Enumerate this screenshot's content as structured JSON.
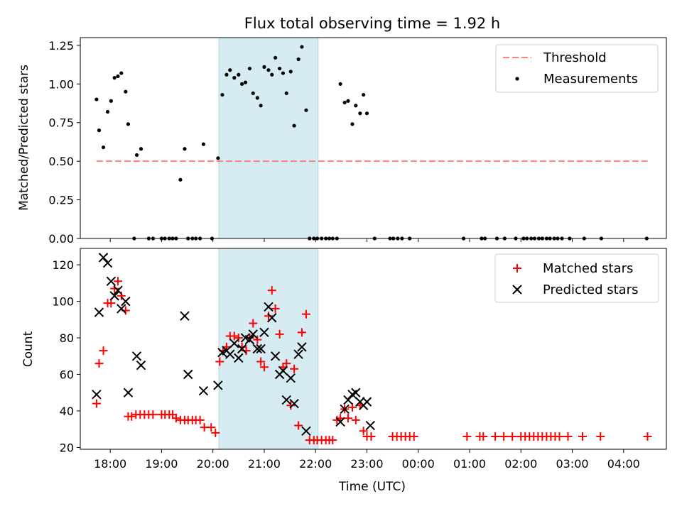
{
  "chart_data": [
    {
      "type": "scatter",
      "title": "Flux total observing time = 1.92 h",
      "xlabel": "",
      "ylabel": "Matched/Predicted stars",
      "ylim": [
        0,
        1.3
      ],
      "xlim": [
        "17:25",
        "04:50"
      ],
      "yticks": [
        0,
        0.25,
        0.5,
        0.75,
        1.0,
        1.25
      ],
      "ytick_labels": [
        "0.00",
        "0.25",
        "0.50",
        "0.75",
        "1.00",
        "1.25"
      ],
      "shaded_span": {
        "start": "20:07",
        "end": "22:03"
      },
      "legend_position": "upper right",
      "threshold": {
        "name": "Threshold",
        "value": 0.5,
        "x_start": "17:44",
        "x_end": "04:28",
        "color": "#ff7f7f"
      },
      "series": [
        {
          "name": "Measurements",
          "marker": "dot",
          "color": "#000000",
          "points": [
            [
              "17:44",
              0.9
            ],
            [
              "17:47",
              0.7
            ],
            [
              "17:52",
              0.59
            ],
            [
              "17:57",
              0.82
            ],
            [
              "18:01",
              0.89
            ],
            [
              "18:05",
              1.04
            ],
            [
              "18:09",
              1.05
            ],
            [
              "18:13",
              1.07
            ],
            [
              "18:18",
              0.95
            ],
            [
              "18:21",
              0.74
            ],
            [
              "18:28",
              0.0
            ],
            [
              "18:31",
              0.54
            ],
            [
              "18:36",
              0.58
            ],
            [
              "18:45",
              0.0
            ],
            [
              "18:50",
              0.0
            ],
            [
              "19:00",
              0.0
            ],
            [
              "19:04",
              0.0
            ],
            [
              "19:09",
              0.0
            ],
            [
              "19:13",
              0.0
            ],
            [
              "19:17",
              0.0
            ],
            [
              "19:22",
              0.38
            ],
            [
              "19:27",
              0.58
            ],
            [
              "19:31",
              0.0
            ],
            [
              "19:36",
              0.0
            ],
            [
              "19:40",
              0.0
            ],
            [
              "19:45",
              0.0
            ],
            [
              "19:49",
              0.61
            ],
            [
              "19:59",
              0.0
            ],
            [
              "20:06",
              0.52
            ],
            [
              "20:11",
              0.93
            ],
            [
              "20:16",
              1.06
            ],
            [
              "20:20",
              1.09
            ],
            [
              "20:25",
              1.04
            ],
            [
              "20:30",
              1.06
            ],
            [
              "20:34",
              1.0
            ],
            [
              "20:38",
              1.01
            ],
            [
              "20:43",
              1.1
            ],
            [
              "20:47",
              0.94
            ],
            [
              "20:52",
              0.91
            ],
            [
              "20:56",
              0.86
            ],
            [
              "21:00",
              1.11
            ],
            [
              "21:05",
              1.09
            ],
            [
              "21:09",
              1.06
            ],
            [
              "21:13",
              1.17
            ],
            [
              "21:18",
              1.1
            ],
            [
              "21:22",
              1.07
            ],
            [
              "21:26",
              0.94
            ],
            [
              "21:31",
              1.08
            ],
            [
              "21:35",
              0.73
            ],
            [
              "21:40",
              1.16
            ],
            [
              "21:44",
              1.24
            ],
            [
              "21:49",
              0.83
            ],
            [
              "21:53",
              0.0
            ],
            [
              "21:58",
              0.0
            ],
            [
              "22:02",
              0.0
            ],
            [
              "22:07",
              0.0
            ],
            [
              "22:12",
              0.0
            ],
            [
              "22:16",
              0.0
            ],
            [
              "22:20",
              0.0
            ],
            [
              "22:25",
              0.0
            ],
            [
              "22:29",
              1.0
            ],
            [
              "22:34",
              0.88
            ],
            [
              "22:38",
              0.89
            ],
            [
              "22:43",
              0.74
            ],
            [
              "22:47",
              0.86
            ],
            [
              "22:52",
              0.81
            ],
            [
              "22:56",
              0.93
            ],
            [
              "23:00",
              0.81
            ],
            [
              "23:09",
              0.0
            ],
            [
              "23:27",
              0.0
            ],
            [
              "23:31",
              0.0
            ],
            [
              "23:36",
              0.0
            ],
            [
              "23:41",
              0.0
            ],
            [
              "23:50",
              0.0
            ],
            [
              "00:53",
              0.0
            ],
            [
              "01:14",
              0.0
            ],
            [
              "01:18",
              0.0
            ],
            [
              "01:32",
              0.0
            ],
            [
              "01:41",
              0.0
            ],
            [
              "01:54",
              0.0
            ],
            [
              "02:03",
              0.0
            ],
            [
              "02:07",
              0.0
            ],
            [
              "02:12",
              0.0
            ],
            [
              "02:16",
              0.0
            ],
            [
              "02:21",
              0.0
            ],
            [
              "02:25",
              0.0
            ],
            [
              "02:30",
              0.0
            ],
            [
              "02:34",
              0.0
            ],
            [
              "02:39",
              0.0
            ],
            [
              "02:43",
              0.0
            ],
            [
              "02:48",
              0.0
            ],
            [
              "02:57",
              0.0
            ],
            [
              "03:14",
              0.0
            ],
            [
              "03:34",
              0.0
            ],
            [
              "04:27",
              0.0
            ]
          ]
        }
      ]
    },
    {
      "type": "scatter",
      "title": "",
      "xlabel": "Time (UTC)",
      "ylabel": "Count",
      "ylim": [
        19,
        129
      ],
      "xlim": [
        "17:25",
        "04:50"
      ],
      "yticks": [
        20,
        40,
        60,
        80,
        100,
        120
      ],
      "ytick_labels": [
        "20",
        "40",
        "60",
        "80",
        "100",
        "120"
      ],
      "xticks": [
        "18:00",
        "19:00",
        "20:00",
        "21:00",
        "22:00",
        "23:00",
        "00:00",
        "01:00",
        "02:00",
        "03:00",
        "04:00"
      ],
      "shaded_span": {
        "start": "20:07",
        "end": "22:03"
      },
      "legend_position": "upper right",
      "series": [
        {
          "name": "Matched stars",
          "marker": "plus",
          "color": "#ff0000",
          "points": [
            [
              "17:44",
              44
            ],
            [
              "17:47",
              66
            ],
            [
              "17:52",
              73
            ],
            [
              "17:57",
              99
            ],
            [
              "18:01",
              99
            ],
            [
              "18:05",
              107
            ],
            [
              "18:09",
              111
            ],
            [
              "18:13",
              103
            ],
            [
              "18:18",
              95
            ],
            [
              "18:21",
              37
            ],
            [
              "18:25",
              37
            ],
            [
              "18:30",
              38
            ],
            [
              "18:35",
              38
            ],
            [
              "18:40",
              38
            ],
            [
              "18:45",
              38
            ],
            [
              "18:50",
              38
            ],
            [
              "19:00",
              38
            ],
            [
              "19:04",
              38
            ],
            [
              "19:09",
              38
            ],
            [
              "19:13",
              38
            ],
            [
              "19:17",
              36
            ],
            [
              "19:22",
              35
            ],
            [
              "19:27",
              35
            ],
            [
              "19:31",
              35
            ],
            [
              "19:36",
              35
            ],
            [
              "19:40",
              35
            ],
            [
              "19:45",
              35
            ],
            [
              "19:50",
              31
            ],
            [
              "19:58",
              31
            ],
            [
              "20:03",
              28
            ],
            [
              "20:08",
              67
            ],
            [
              "20:12",
              73
            ],
            [
              "20:16",
              75
            ],
            [
              "20:20",
              81
            ],
            [
              "20:25",
              81
            ],
            [
              "20:30",
              80
            ],
            [
              "20:34",
              75
            ],
            [
              "20:39",
              73
            ],
            [
              "20:43",
              80
            ],
            [
              "20:47",
              88
            ],
            [
              "20:52",
              79
            ],
            [
              "20:56",
              67
            ],
            [
              "21:00",
              64
            ],
            [
              "21:05",
              92
            ],
            [
              "21:09",
              106
            ],
            [
              "21:13",
              96
            ],
            [
              "21:18",
              82
            ],
            [
              "21:22",
              64
            ],
            [
              "21:26",
              66
            ],
            [
              "21:31",
              43
            ],
            [
              "21:35",
              63
            ],
            [
              "21:40",
              32
            ],
            [
              "21:44",
              83
            ],
            [
              "21:49",
              93
            ],
            [
              "21:53",
              24
            ],
            [
              "21:58",
              24
            ],
            [
              "22:02",
              24
            ],
            [
              "22:07",
              24
            ],
            [
              "22:12",
              24
            ],
            [
              "22:16",
              24
            ],
            [
              "22:20",
              24
            ],
            [
              "22:25",
              35
            ],
            [
              "22:29",
              36
            ],
            [
              "22:34",
              41
            ],
            [
              "22:38",
              36
            ],
            [
              "22:43",
              42
            ],
            [
              "22:47",
              35
            ],
            [
              "22:52",
              43
            ],
            [
              "22:56",
              29
            ],
            [
              "23:00",
              26
            ],
            [
              "23:05",
              26
            ],
            [
              "23:30",
              26
            ],
            [
              "23:35",
              26
            ],
            [
              "23:40",
              26
            ],
            [
              "23:45",
              26
            ],
            [
              "23:50",
              26
            ],
            [
              "23:55",
              26
            ],
            [
              "00:57",
              26
            ],
            [
              "01:12",
              26
            ],
            [
              "01:16",
              26
            ],
            [
              "01:30",
              26
            ],
            [
              "01:40",
              26
            ],
            [
              "01:50",
              26
            ],
            [
              "02:00",
              26
            ],
            [
              "02:05",
              26
            ],
            [
              "02:10",
              26
            ],
            [
              "02:15",
              26
            ],
            [
              "02:20",
              26
            ],
            [
              "02:25",
              26
            ],
            [
              "02:30",
              26
            ],
            [
              "02:35",
              26
            ],
            [
              "02:40",
              26
            ],
            [
              "02:45",
              26
            ],
            [
              "02:55",
              26
            ],
            [
              "03:12",
              26
            ],
            [
              "03:33",
              26
            ],
            [
              "04:28",
              26
            ]
          ]
        },
        {
          "name": "Predicted stars",
          "marker": "x",
          "color": "#000000",
          "points": [
            [
              "17:44",
              49
            ],
            [
              "17:47",
              94
            ],
            [
              "17:52",
              124
            ],
            [
              "17:57",
              121
            ],
            [
              "18:01",
              111
            ],
            [
              "18:05",
              103
            ],
            [
              "18:09",
              106
            ],
            [
              "18:13",
              96
            ],
            [
              "18:18",
              100
            ],
            [
              "18:21",
              50
            ],
            [
              "18:31",
              70
            ],
            [
              "18:36",
              65
            ],
            [
              "19:27",
              92
            ],
            [
              "19:31",
              60
            ],
            [
              "19:49",
              51
            ],
            [
              "20:06",
              54
            ],
            [
              "20:11",
              72
            ],
            [
              "20:16",
              73
            ],
            [
              "20:20",
              71
            ],
            [
              "20:25",
              77
            ],
            [
              "20:30",
              69
            ],
            [
              "20:34",
              74
            ],
            [
              "20:38",
              80
            ],
            [
              "20:43",
              79
            ],
            [
              "20:47",
              82
            ],
            [
              "20:52",
              74
            ],
            [
              "20:56",
              74
            ],
            [
              "21:00",
              83
            ],
            [
              "21:05",
              97
            ],
            [
              "21:09",
              91
            ],
            [
              "21:13",
              70
            ],
            [
              "21:18",
              60
            ],
            [
              "21:22",
              62
            ],
            [
              "21:26",
              46
            ],
            [
              "21:31",
              58
            ],
            [
              "21:35",
              44
            ],
            [
              "21:40",
              71
            ],
            [
              "21:44",
              75
            ],
            [
              "21:49",
              29
            ],
            [
              "22:29",
              34
            ],
            [
              "22:34",
              41
            ],
            [
              "22:38",
              46
            ],
            [
              "22:43",
              49
            ],
            [
              "22:47",
              50
            ],
            [
              "22:52",
              45
            ],
            [
              "22:56",
              43
            ],
            [
              "23:00",
              45
            ],
            [
              "23:04",
              32
            ]
          ]
        }
      ]
    }
  ]
}
